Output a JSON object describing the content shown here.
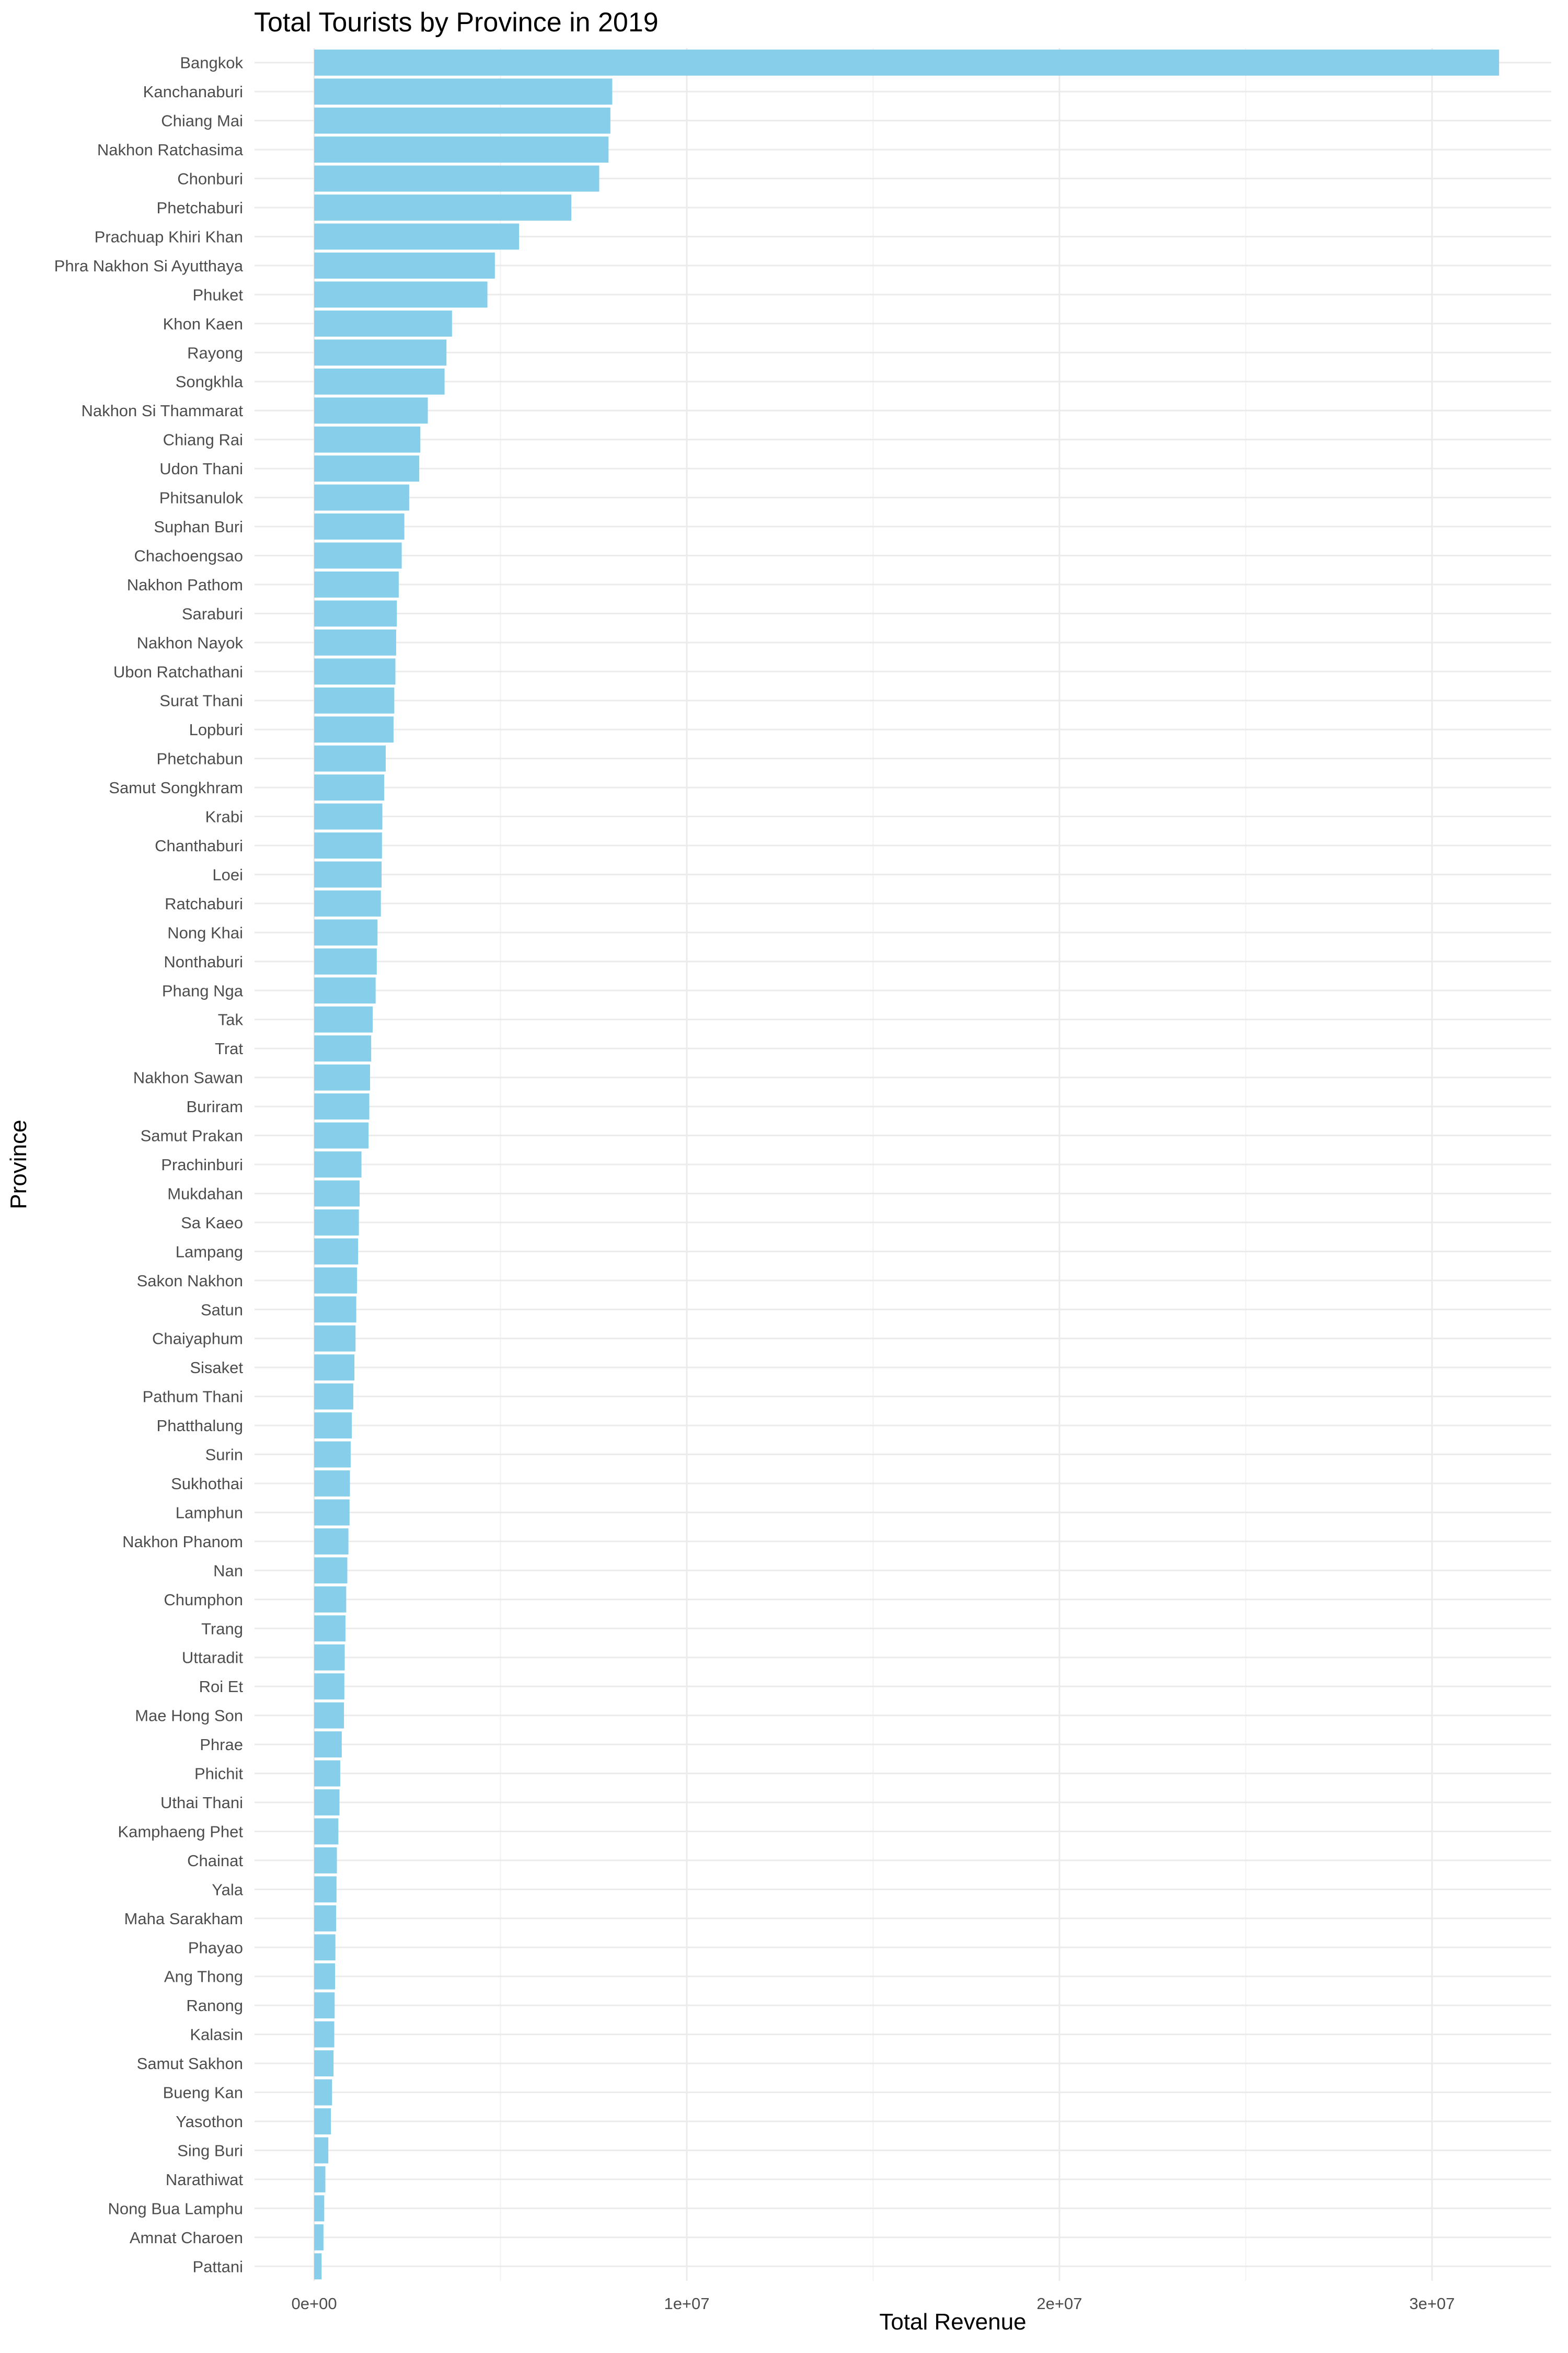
{
  "chart_data": {
    "type": "bar",
    "orientation": "horizontal",
    "title": "Total Tourists by Province in 2019",
    "xlabel": "Total Revenue",
    "ylabel": "Province",
    "xlim": [
      -1600000,
      33200000
    ],
    "xticks": [
      0,
      10000000,
      20000000,
      30000000
    ],
    "xtick_labels": [
      "0e+00",
      "1e+07",
      "2e+07",
      "3e+07"
    ],
    "grid": true,
    "legend": "none",
    "bar_color": "#87CEEB",
    "categories": [
      "Bangkok",
      "Kanchanaburi",
      "Chiang Mai",
      "Nakhon Ratchasima",
      "Chonburi",
      "Phetchaburi",
      "Prachuap Khiri Khan",
      "Phra Nakhon Si Ayutthaya",
      "Phuket",
      "Khon Kaen",
      "Rayong",
      "Songkhla",
      "Nakhon Si Thammarat",
      "Chiang Rai",
      "Udon Thani",
      "Phitsanulok",
      "Suphan Buri",
      "Chachoengsao",
      "Nakhon Pathom",
      "Saraburi",
      "Nakhon Nayok",
      "Ubon Ratchathani",
      "Surat Thani",
      "Lopburi",
      "Phetchabun",
      "Samut Songkhram",
      "Krabi",
      "Chanthaburi",
      "Loei",
      "Ratchaburi",
      "Nong Khai",
      "Nonthaburi",
      "Phang Nga",
      "Tak",
      "Trat",
      "Nakhon Sawan",
      "Buriram",
      "Samut Prakan",
      "Prachinburi",
      "Mukdahan",
      "Sa Kaeo",
      "Lampang",
      "Sakon Nakhon",
      "Satun",
      "Chaiyaphum",
      "Sisaket",
      "Pathum Thani",
      "Phatthalung",
      "Surin",
      "Sukhothai",
      "Lamphun",
      "Nakhon Phanom",
      "Nan",
      "Chumphon",
      "Trang",
      "Uttaradit",
      "Roi Et",
      "Mae Hong Son",
      "Phrae",
      "Phichit",
      "Uthai Thani",
      "Kamphaeng Phet",
      "Chainat",
      "Yala",
      "Maha Sarakham",
      "Phayao",
      "Ang Thong",
      "Ranong",
      "Kalasin",
      "Samut Sakhon",
      "Bueng Kan",
      "Yasothon",
      "Sing Buri",
      "Narathiwat",
      "Nong Bua Lamphu",
      "Amnat Charoen",
      "Pattani"
    ],
    "values": [
      31800000,
      8000000,
      7950000,
      7900000,
      7650000,
      6900000,
      5500000,
      4850000,
      4650000,
      3700000,
      3550000,
      3500000,
      3050000,
      2850000,
      2820000,
      2550000,
      2420000,
      2350000,
      2270000,
      2220000,
      2200000,
      2180000,
      2150000,
      2130000,
      1920000,
      1880000,
      1830000,
      1820000,
      1810000,
      1790000,
      1700000,
      1680000,
      1650000,
      1570000,
      1530000,
      1500000,
      1480000,
      1460000,
      1270000,
      1220000,
      1200000,
      1180000,
      1150000,
      1130000,
      1110000,
      1080000,
      1050000,
      1010000,
      980000,
      960000,
      950000,
      920000,
      890000,
      860000,
      840000,
      820000,
      810000,
      800000,
      740000,
      700000,
      680000,
      650000,
      610000,
      600000,
      590000,
      570000,
      560000,
      550000,
      540000,
      520000,
      480000,
      450000,
      380000,
      300000,
      270000,
      250000,
      200000
    ]
  }
}
